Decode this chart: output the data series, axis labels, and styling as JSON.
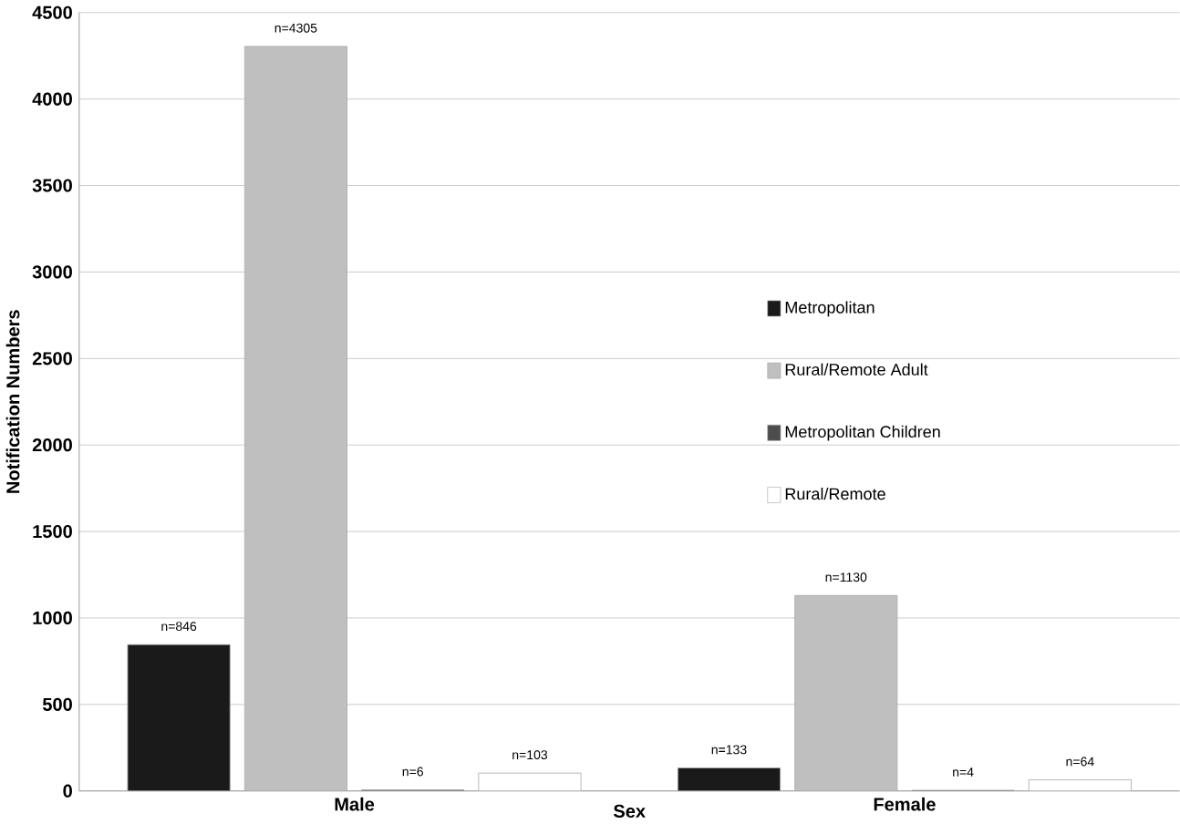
{
  "chart_data": {
    "type": "bar",
    "xlabel": "Sex",
    "ylabel": "Notification Numbers",
    "categories": [
      "Male",
      "Female"
    ],
    "series": [
      {
        "name": "Metropolitan",
        "color": "#1a1a1a",
        "values": [
          846,
          133
        ],
        "value_labels": [
          "n=846",
          "n=133"
        ]
      },
      {
        "name": "Rural/Remote Adult",
        "color": "#bfbfbf",
        "values": [
          4305,
          1130
        ],
        "value_labels": [
          "n=4305",
          "n=1130"
        ]
      },
      {
        "name": "Metropolitan Children",
        "color": "#4d4d4d",
        "values": [
          6,
          4
        ],
        "value_labels": [
          "n=6",
          "n=4"
        ]
      },
      {
        "name": "Rural/Remote",
        "color": "#ffffff",
        "values": [
          103,
          64
        ],
        "value_labels": [
          "n=103",
          "n=64"
        ]
      }
    ],
    "ylim": [
      0,
      4500
    ],
    "yticks": [
      0,
      500,
      1000,
      1500,
      2000,
      2500,
      3000,
      3500,
      4000,
      4500
    ],
    "grid": "y",
    "legend": "right"
  }
}
